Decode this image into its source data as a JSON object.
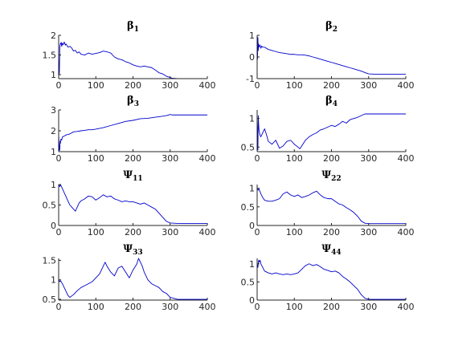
{
  "colors": {
    "line": "#0000cc",
    "axis": "#262626",
    "background": "#ffffff"
  },
  "chart_data": [
    {
      "type": "line",
      "title_base": "β",
      "title_sub": "1",
      "xlim": [
        0,
        400
      ],
      "ylim": [
        0.9,
        2.0
      ],
      "xticks": [
        "0",
        "100",
        "200",
        "300",
        "400"
      ],
      "yticks": [
        {
          "v": 1,
          "t": "1"
        },
        {
          "v": 1.5,
          "t": "1.5"
        },
        {
          "v": 2,
          "t": "2"
        }
      ],
      "series": [
        {
          "x": [
            0,
            1,
            2,
            3,
            4,
            5,
            6,
            7,
            8,
            10,
            12,
            15,
            18,
            20,
            25,
            30,
            35,
            40,
            45,
            50,
            55,
            60,
            70,
            80,
            90,
            100,
            110,
            120,
            130,
            140,
            150,
            160,
            170,
            180,
            190,
            200,
            210,
            220,
            230,
            240,
            250,
            260,
            270,
            280,
            290,
            300,
            305,
            320,
            350,
            380,
            400
          ],
          "y": [
            1.5,
            1.0,
            1.05,
            1.7,
            1.75,
            1.8,
            1.78,
            1.82,
            1.72,
            1.8,
            1.76,
            1.83,
            1.75,
            1.78,
            1.7,
            1.72,
            1.68,
            1.6,
            1.62,
            1.55,
            1.58,
            1.52,
            1.5,
            1.55,
            1.52,
            1.54,
            1.56,
            1.6,
            1.58,
            1.55,
            1.45,
            1.4,
            1.38,
            1.33,
            1.3,
            1.25,
            1.22,
            1.2,
            1.22,
            1.2,
            1.18,
            1.12,
            1.05,
            1.02,
            0.96,
            0.93,
            0.91,
            0.9,
            0.9,
            0.9,
            0.9
          ]
        }
      ]
    },
    {
      "type": "line",
      "title_base": "β",
      "title_sub": "2",
      "xlim": [
        0,
        400
      ],
      "ylim": [
        -1.0,
        1.0
      ],
      "xticks": [
        "0",
        "100",
        "200",
        "300",
        "400"
      ],
      "yticks": [
        {
          "v": -1,
          "t": "-1"
        },
        {
          "v": 0,
          "t": "0"
        },
        {
          "v": 1,
          "t": "1"
        }
      ],
      "series": [
        {
          "x": [
            0,
            1,
            2,
            3,
            4,
            5,
            6,
            8,
            10,
            12,
            15,
            20,
            30,
            40,
            50,
            60,
            70,
            80,
            90,
            100,
            110,
            120,
            130,
            140,
            150,
            160,
            170,
            180,
            190,
            200,
            210,
            220,
            230,
            240,
            250,
            260,
            270,
            280,
            290,
            300,
            320,
            350,
            380,
            400
          ],
          "y": [
            0.8,
            -0.1,
            0.9,
            0.3,
            0.6,
            0.45,
            0.5,
            0.55,
            0.4,
            0.5,
            0.45,
            0.45,
            0.35,
            0.3,
            0.25,
            0.2,
            0.18,
            0.15,
            0.12,
            0.12,
            0.1,
            0.1,
            0.08,
            0.05,
            0.0,
            -0.05,
            -0.1,
            -0.15,
            -0.2,
            -0.25,
            -0.3,
            -0.35,
            -0.4,
            -0.45,
            -0.5,
            -0.55,
            -0.6,
            -0.65,
            -0.72,
            -0.78,
            -0.8,
            -0.8,
            -0.8,
            -0.8
          ]
        }
      ]
    },
    {
      "type": "line",
      "title_base": "β",
      "title_sub": "3",
      "xlim": [
        0,
        400
      ],
      "ylim": [
        1.0,
        3.0
      ],
      "xticks": [
        "0",
        "100",
        "200",
        "300",
        "400"
      ],
      "yticks": [
        {
          "v": 1,
          "t": "1"
        },
        {
          "v": 2,
          "t": "2"
        },
        {
          "v": 3,
          "t": "3"
        }
      ],
      "series": [
        {
          "x": [
            0,
            2,
            3,
            4,
            5,
            6,
            8,
            10,
            15,
            20,
            30,
            40,
            50,
            60,
            70,
            80,
            90,
            100,
            120,
            140,
            160,
            180,
            200,
            220,
            240,
            260,
            280,
            290,
            300,
            305,
            320,
            350,
            380,
            400
          ],
          "y": [
            1.8,
            1.05,
            1.1,
            1.5,
            1.4,
            1.6,
            1.55,
            1.7,
            1.75,
            1.8,
            1.85,
            1.95,
            1.97,
            2.0,
            2.02,
            2.05,
            2.05,
            2.08,
            2.15,
            2.25,
            2.35,
            2.45,
            2.5,
            2.58,
            2.6,
            2.65,
            2.7,
            2.73,
            2.78,
            2.76,
            2.76,
            2.76,
            2.76,
            2.76
          ]
        }
      ]
    },
    {
      "type": "line",
      "title_base": "β",
      "title_sub": "4",
      "xlim": [
        0,
        400
      ],
      "ylim": [
        0.42,
        1.15
      ],
      "xticks": [
        "0",
        "100",
        "200",
        "300",
        "400"
      ],
      "yticks": [
        {
          "v": 0.5,
          "t": "0.5"
        },
        {
          "v": 1,
          "t": "1"
        }
      ],
      "series": [
        {
          "x": [
            0,
            2,
            3,
            4,
            5,
            8,
            10,
            15,
            20,
            25,
            30,
            40,
            50,
            60,
            70,
            80,
            90,
            100,
            110,
            115,
            120,
            130,
            140,
            150,
            160,
            170,
            180,
            190,
            200,
            210,
            220,
            230,
            240,
            250,
            260,
            270,
            280,
            290,
            300,
            320,
            350,
            380,
            400
          ],
          "y": [
            1.0,
            0.45,
            1.05,
            0.9,
            0.8,
            0.7,
            0.68,
            0.75,
            0.82,
            0.72,
            0.6,
            0.55,
            0.62,
            0.48,
            0.52,
            0.6,
            0.62,
            0.55,
            0.5,
            0.47,
            0.52,
            0.62,
            0.68,
            0.72,
            0.75,
            0.8,
            0.82,
            0.85,
            0.88,
            0.86,
            0.9,
            0.95,
            0.92,
            0.98,
            1.0,
            1.02,
            1.05,
            1.08,
            1.08,
            1.08,
            1.08,
            1.08,
            1.08
          ]
        }
      ]
    },
    {
      "type": "line",
      "title_base": "Ψ",
      "title_sub": "11",
      "xlim": [
        0,
        400
      ],
      "ylim": [
        0,
        1
      ],
      "xticks": [
        "0",
        "100",
        "200",
        "300",
        "400"
      ],
      "yticks": [
        {
          "v": 0,
          "t": "0"
        },
        {
          "v": 0.5,
          "t": "0.5"
        },
        {
          "v": 1,
          "t": "1"
        }
      ],
      "series": [
        {
          "x": [
            0,
            3,
            5,
            10,
            15,
            20,
            25,
            30,
            35,
            40,
            45,
            50,
            55,
            60,
            70,
            80,
            90,
            100,
            110,
            120,
            130,
            140,
            150,
            160,
            170,
            180,
            190,
            200,
            210,
            220,
            230,
            240,
            250,
            260,
            270,
            280,
            290,
            300,
            320,
            350,
            380,
            400
          ],
          "y": [
            1.0,
            0.95,
            1.0,
            0.9,
            0.8,
            0.7,
            0.6,
            0.5,
            0.45,
            0.4,
            0.35,
            0.45,
            0.55,
            0.6,
            0.65,
            0.72,
            0.7,
            0.62,
            0.68,
            0.75,
            0.7,
            0.72,
            0.65,
            0.62,
            0.58,
            0.6,
            0.58,
            0.58,
            0.55,
            0.52,
            0.55,
            0.5,
            0.45,
            0.4,
            0.3,
            0.2,
            0.1,
            0.06,
            0.05,
            0.05,
            0.05,
            0.05
          ]
        }
      ]
    },
    {
      "type": "line",
      "title_base": "Ψ",
      "title_sub": "22",
      "xlim": [
        0,
        400
      ],
      "ylim": [
        0,
        1.1
      ],
      "xticks": [
        "0",
        "100",
        "200",
        "300",
        "400"
      ],
      "yticks": [
        {
          "v": 0,
          "t": "0"
        },
        {
          "v": 0.5,
          "t": "0.5"
        },
        {
          "v": 1,
          "t": "1"
        }
      ],
      "series": [
        {
          "x": [
            0,
            3,
            5,
            10,
            15,
            20,
            30,
            40,
            50,
            60,
            70,
            80,
            90,
            100,
            110,
            120,
            130,
            140,
            150,
            160,
            170,
            180,
            190,
            200,
            210,
            220,
            230,
            240,
            250,
            260,
            270,
            280,
            290,
            300,
            320,
            350,
            380,
            400
          ],
          "y": [
            1.0,
            0.95,
            0.98,
            0.85,
            0.75,
            0.68,
            0.65,
            0.65,
            0.68,
            0.72,
            0.85,
            0.9,
            0.82,
            0.78,
            0.82,
            0.75,
            0.78,
            0.82,
            0.88,
            0.92,
            0.82,
            0.75,
            0.72,
            0.72,
            0.65,
            0.58,
            0.55,
            0.48,
            0.42,
            0.35,
            0.25,
            0.12,
            0.06,
            0.05,
            0.05,
            0.05,
            0.05,
            0.05
          ]
        }
      ]
    },
    {
      "type": "line",
      "title_base": "Ψ",
      "title_sub": "33",
      "xlim": [
        0,
        400
      ],
      "ylim": [
        0.48,
        1.55
      ],
      "xticks": [
        "0",
        "100",
        "200",
        "300",
        "400"
      ],
      "yticks": [
        {
          "v": 0.5,
          "t": "0.5"
        },
        {
          "v": 1,
          "t": "1"
        },
        {
          "v": 1.5,
          "t": "1.5"
        }
      ],
      "series": [
        {
          "x": [
            0,
            3,
            5,
            10,
            15,
            20,
            25,
            30,
            40,
            50,
            60,
            70,
            80,
            90,
            100,
            110,
            120,
            125,
            130,
            140,
            150,
            160,
            170,
            180,
            190,
            200,
            210,
            215,
            220,
            225,
            230,
            240,
            250,
            260,
            270,
            280,
            290,
            300,
            320,
            350,
            380,
            400
          ],
          "y": [
            1.0,
            0.95,
            0.98,
            0.9,
            0.8,
            0.7,
            0.6,
            0.55,
            0.62,
            0.72,
            0.8,
            0.85,
            0.9,
            0.95,
            1.05,
            1.15,
            1.35,
            1.45,
            1.35,
            1.2,
            1.1,
            1.3,
            1.35,
            1.2,
            1.05,
            1.25,
            1.4,
            1.55,
            1.45,
            1.35,
            1.2,
            1.0,
            0.9,
            0.85,
            0.8,
            0.7,
            0.65,
            0.55,
            0.5,
            0.5,
            0.5,
            0.5
          ]
        }
      ]
    },
    {
      "type": "line",
      "title_base": "Ψ",
      "title_sub": "44",
      "xlim": [
        0,
        400
      ],
      "ylim": [
        0,
        1.15
      ],
      "xticks": [
        "0",
        "100",
        "200",
        "300",
        "400"
      ],
      "yticks": [
        {
          "v": 0,
          "t": "0"
        },
        {
          "v": 0.5,
          "t": "0.5"
        },
        {
          "v": 1,
          "t": "1"
        }
      ],
      "series": [
        {
          "x": [
            0,
            2,
            4,
            6,
            8,
            10,
            15,
            20,
            30,
            40,
            50,
            60,
            70,
            80,
            90,
            100,
            110,
            120,
            130,
            140,
            150,
            160,
            170,
            180,
            190,
            200,
            210,
            220,
            230,
            240,
            250,
            260,
            270,
            280,
            290,
            300,
            320,
            350,
            380,
            400
          ],
          "y": [
            1.0,
            0.9,
            1.1,
            1.05,
            1.1,
            1.0,
            0.9,
            0.8,
            0.75,
            0.72,
            0.75,
            0.72,
            0.7,
            0.72,
            0.7,
            0.72,
            0.75,
            0.85,
            0.95,
            1.0,
            0.95,
            0.98,
            0.92,
            0.85,
            0.82,
            0.78,
            0.8,
            0.75,
            0.65,
            0.58,
            0.5,
            0.4,
            0.3,
            0.15,
            0.05,
            0.02,
            0.02,
            0.02,
            0.02,
            0.02
          ]
        }
      ]
    }
  ]
}
